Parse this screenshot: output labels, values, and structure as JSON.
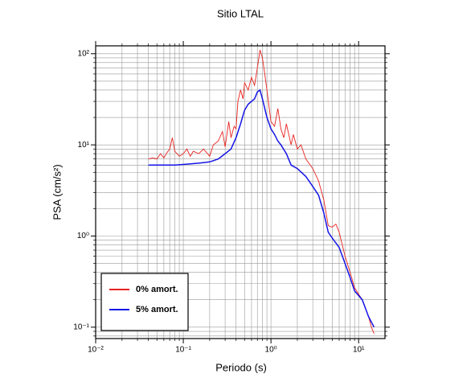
{
  "chart_data": {
    "type": "line",
    "title": "Sitio LTAL",
    "x_label": "Periodo (s)",
    "y_label": "PSA (cm/s²)",
    "log_x": true,
    "log_y": true,
    "grid": true,
    "legend": "lower left",
    "xlim": [
      0.01,
      20
    ],
    "ylim": [
      0.075,
      122
    ],
    "xticks": [
      {
        "value": 0.01,
        "label": "10⁻²"
      },
      {
        "value": 0.1,
        "label": "10⁻¹"
      },
      {
        "value": 1,
        "label": "10⁰"
      },
      {
        "value": 10,
        "label": "10¹"
      }
    ],
    "yticks": [
      {
        "value": 0.1,
        "label": "10⁻¹"
      },
      {
        "value": 1,
        "label": "10⁰"
      },
      {
        "value": 10,
        "label": "10¹"
      },
      {
        "value": 100,
        "label": "10²"
      }
    ],
    "xminorticks": [
      0.02,
      0.03,
      0.04,
      0.05,
      0.06,
      0.07,
      0.08,
      0.09,
      0.2,
      0.3,
      0.4,
      0.5,
      0.6,
      0.7,
      0.8,
      0.9,
      2,
      3,
      4,
      5,
      6,
      7,
      8,
      9
    ],
    "yminorticks": [
      0.08,
      0.09,
      0.2,
      0.3,
      0.4,
      0.5,
      0.6,
      0.7,
      0.8,
      0.9,
      2,
      3,
      4,
      5,
      6,
      7,
      8,
      9,
      20,
      30,
      40,
      50,
      60,
      70,
      80,
      90
    ],
    "series": [
      {
        "name": "0% amort.",
        "color": "#e8231f",
        "x": [
          0.04,
          0.045,
          0.05,
          0.055,
          0.06,
          0.065,
          0.07,
          0.075,
          0.08,
          0.09,
          0.1,
          0.11,
          0.12,
          0.13,
          0.15,
          0.17,
          0.2,
          0.22,
          0.25,
          0.28,
          0.3,
          0.33,
          0.35,
          0.38,
          0.4,
          0.42,
          0.45,
          0.48,
          0.5,
          0.55,
          0.6,
          0.65,
          0.7,
          0.75,
          0.8,
          0.85,
          0.9,
          1.0,
          1.1,
          1.2,
          1.3,
          1.4,
          1.5,
          1.7,
          1.8,
          2.0,
          2.2,
          2.5,
          3.0,
          3.5,
          4.0,
          4.5,
          5,
          5.5,
          6,
          7,
          8,
          9,
          11,
          13,
          14,
          15
        ],
        "values": [
          7.0,
          7.2,
          7.0,
          8.0,
          7.2,
          8.2,
          9.0,
          12,
          8.5,
          7.5,
          8.0,
          9.0,
          7.5,
          8.5,
          8.0,
          9.0,
          7.5,
          10,
          11,
          14,
          9.5,
          18,
          12,
          16,
          15,
          30,
          40,
          32,
          48,
          40,
          55,
          45,
          70,
          110,
          90,
          60,
          40,
          18,
          16,
          25,
          15,
          12,
          17,
          10,
          13,
          9,
          10,
          7,
          5.5,
          4,
          2.5,
          1.3,
          1.25,
          1.35,
          1.1,
          0.6,
          0.4,
          0.27,
          0.2,
          0.13,
          0.1,
          0.085
        ]
      },
      {
        "name": "5% amort.",
        "color": "#1414e6",
        "x": [
          0.04,
          0.06,
          0.08,
          0.1,
          0.15,
          0.2,
          0.25,
          0.3,
          0.35,
          0.4,
          0.45,
          0.5,
          0.55,
          0.6,
          0.65,
          0.7,
          0.75,
          0.8,
          0.9,
          1.0,
          1.1,
          1.2,
          1.3,
          1.5,
          1.7,
          2.0,
          2.5,
          3,
          3.5,
          4,
          4.5,
          5,
          6,
          7,
          8,
          9,
          11,
          13,
          15
        ],
        "values": [
          6.0,
          6.0,
          6.0,
          6.1,
          6.3,
          6.5,
          7.0,
          8,
          9,
          12,
          17,
          24,
          28,
          30,
          32,
          38,
          40,
          32,
          20,
          15,
          13,
          11,
          10,
          8,
          6,
          5.5,
          4.5,
          3.5,
          2.8,
          1.8,
          1.1,
          0.95,
          0.75,
          0.5,
          0.35,
          0.25,
          0.2,
          0.13,
          0.1
        ]
      }
    ]
  }
}
